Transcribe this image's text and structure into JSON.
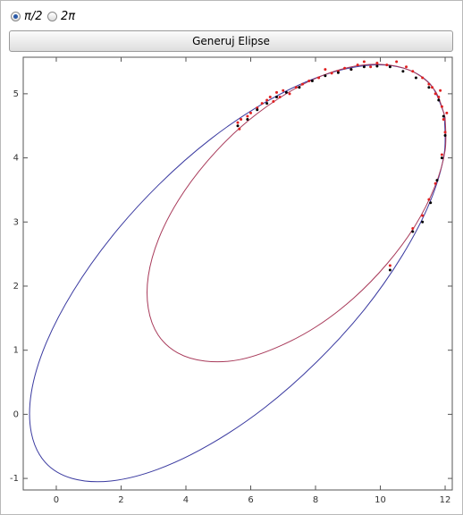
{
  "controls": {
    "options": [
      "π/2",
      "2π"
    ],
    "selected": 0,
    "button": "Generuj Elipse"
  },
  "chart_data": {
    "type": "line",
    "xlim": [
      -1.02,
      12.22
    ],
    "ylim": [
      -1.18,
      5.57
    ],
    "xticks": [
      0,
      2,
      4,
      6,
      8,
      10,
      12
    ],
    "yticks": [
      -1,
      0,
      1,
      2,
      3,
      4,
      5
    ],
    "series": [
      {
        "type": "line",
        "color": "#3a3aa0",
        "x": [
          11.97,
          11.54,
          10.71,
          9.53,
          8.08,
          6.46,
          4.78,
          3.16,
          1.71,
          0.52,
          -0.33,
          -0.77,
          -0.77,
          -0.34,
          0.49,
          1.68,
          3.12,
          4.74,
          6.42,
          8.04,
          9.5,
          10.68,
          11.53,
          11.97,
          11.97
        ],
        "y": [
          4.69,
          5.15,
          5.4,
          5.44,
          5.26,
          4.87,
          4.3,
          3.58,
          2.77,
          1.92,
          1.09,
          0.34,
          -0.29,
          -0.75,
          -1.0,
          -1.04,
          -0.86,
          -0.47,
          0.1,
          0.82,
          1.63,
          2.48,
          3.31,
          4.06,
          4.69
        ]
      },
      {
        "type": "line",
        "color": "#a83a5a",
        "x": [
          12.0,
          11.7,
          11.1,
          10.25,
          9.21,
          8.05,
          6.84,
          5.67,
          4.63,
          3.77,
          3.16,
          2.84,
          2.84,
          3.14,
          3.74,
          4.59,
          5.63,
          6.79,
          8.0,
          9.17,
          10.21,
          11.07,
          11.68,
          12.0,
          12.0
        ],
        "y": [
          4.63,
          5.04,
          5.32,
          5.45,
          5.43,
          5.25,
          4.92,
          4.47,
          3.93,
          3.34,
          2.74,
          2.16,
          1.65,
          1.24,
          0.96,
          0.83,
          0.85,
          1.04,
          1.36,
          1.81,
          2.35,
          2.94,
          3.55,
          4.12,
          4.63
        ]
      },
      {
        "type": "scatter",
        "color": "#e02020",
        "x": [
          5.6,
          5.65,
          5.7,
          5.9,
          6.0,
          6.2,
          6.35,
          6.5,
          6.6,
          6.7,
          6.8,
          6.9,
          7.0,
          7.2,
          7.4,
          7.6,
          7.8,
          8.1,
          8.3,
          8.5,
          8.7,
          8.9,
          9.1,
          9.3,
          9.5,
          9.7,
          9.9,
          10.2,
          10.5,
          10.8,
          11.0,
          11.3,
          11.5,
          11.6,
          11.7,
          11.8,
          11.9,
          11.95,
          12.0,
          11.9,
          11.7,
          11.5,
          11.3,
          11.0,
          10.3,
          11.85,
          12.05
        ],
        "y": [
          4.55,
          4.45,
          4.6,
          4.65,
          4.7,
          4.78,
          4.85,
          4.9,
          4.95,
          4.88,
          5.02,
          4.95,
          5.05,
          5.0,
          5.1,
          5.15,
          5.2,
          5.25,
          5.38,
          5.32,
          5.35,
          5.4,
          5.38,
          5.45,
          5.5,
          5.42,
          5.48,
          5.45,
          5.5,
          5.42,
          5.35,
          5.25,
          5.15,
          5.1,
          5.0,
          4.95,
          4.8,
          4.6,
          4.4,
          4.05,
          3.6,
          3.35,
          3.1,
          2.9,
          2.32,
          5.05,
          4.7
        ]
      },
      {
        "type": "scatter",
        "color": "#000000",
        "x": [
          5.6,
          5.9,
          6.2,
          6.5,
          6.8,
          7.1,
          7.5,
          7.9,
          8.3,
          8.7,
          9.1,
          9.5,
          9.9,
          10.3,
          10.7,
          11.1,
          11.5,
          11.8,
          11.95,
          12.0,
          11.9,
          11.75,
          11.55,
          11.3,
          11.0,
          10.3
        ],
        "y": [
          4.5,
          4.6,
          4.75,
          4.85,
          4.95,
          5.02,
          5.1,
          5.2,
          5.28,
          5.33,
          5.38,
          5.42,
          5.43,
          5.42,
          5.35,
          5.25,
          5.1,
          4.9,
          4.65,
          4.35,
          4.0,
          3.65,
          3.3,
          3.0,
          2.85,
          2.25
        ]
      }
    ]
  }
}
